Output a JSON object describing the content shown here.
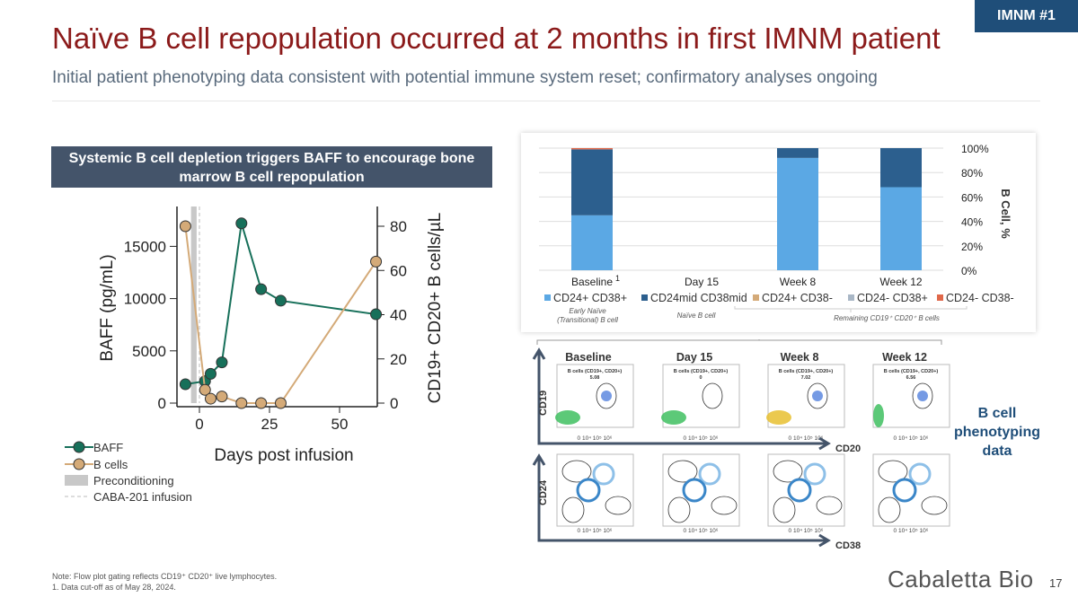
{
  "badge": "IMNM #1",
  "title": "Naïve B cell repopulation occurred at 2 months in first IMNM patient",
  "subtitle": "Initial patient phenotyping data consistent with potential immune system reset; confirmatory analyses ongoing",
  "banner": "Systemic B cell depletion triggers BAFF to encourage bone marrow B cell repopulation",
  "side_label": "B cell phenotyping data",
  "note_line1": "Note: Flow plot gating reflects CD19⁺ CD20⁺ live lymphocytes.",
  "note_line2": "1.  Data cut-off as of May 28, 2024.",
  "logo": "Cabaletta Bio",
  "page_number": "17",
  "chart_data": [
    {
      "type": "line",
      "xlabel": "Days post infusion",
      "ylabel": "BAFF (pg/mL)",
      "y2label": "CD19+ CD20+ B cells/µL",
      "xticks": [
        "0",
        "25",
        "50"
      ],
      "yticks": [
        "0",
        "5000",
        "10000",
        "15000"
      ],
      "y2ticks": [
        "0",
        "20",
        "40",
        "60",
        "80"
      ],
      "xlim": [
        -8,
        65
      ],
      "ylim": [
        0,
        17500
      ],
      "y2lim": [
        0,
        87
      ],
      "series": [
        {
          "name": "BAFF",
          "axis": "left",
          "color": "#17705a",
          "x": [
            -5,
            2,
            4,
            8,
            15,
            22,
            29,
            63
          ],
          "y": [
            1800,
            2100,
            2800,
            3900,
            17200,
            10900,
            9800,
            8500
          ]
        },
        {
          "name": "B cells",
          "axis": "right",
          "color": "#d4aa78",
          "x": [
            -5,
            2,
            4,
            8,
            15,
            22,
            29,
            63
          ],
          "y": [
            80,
            6,
            2,
            3,
            0,
            0,
            0,
            64
          ]
        }
      ],
      "legend": [
        "BAFF",
        "B cells",
        "Preconditioning",
        "CABA-201 infusion"
      ],
      "preconditioning_days": [
        -3,
        -1
      ],
      "infusion_day": 0
    },
    {
      "type": "bar",
      "stacked": true,
      "ylabel": "B Cell, %",
      "yticks": [
        "0%",
        "20%",
        "40%",
        "60%",
        "80%",
        "100%"
      ],
      "ylim": [
        0,
        100
      ],
      "categories": [
        "Baseline",
        "Day 15",
        "Week 8",
        "Week 12"
      ],
      "baseline_footnote": "1",
      "series": [
        {
          "name": "CD24+ CD38+",
          "color": "#5ba8e4",
          "values": [
            45,
            0,
            92,
            68
          ]
        },
        {
          "name": "CD24mid CD38mid",
          "color": "#2c5f8e",
          "values": [
            54,
            0,
            8,
            32
          ]
        },
        {
          "name": "CD24+ CD38-",
          "color": "#d4aa78",
          "values": [
            0,
            0,
            0,
            0
          ]
        },
        {
          "name": "CD24- CD38+",
          "color": "#a9b7c6",
          "values": [
            0,
            0,
            0,
            0
          ]
        },
        {
          "name": "CD24- CD38-",
          "color": "#e0684a",
          "values": [
            1,
            0,
            0,
            0
          ]
        }
      ],
      "group_labels": [
        "Early Naïve (Transitional) B cell",
        "Naïve B cell",
        "Remaining CD19⁺ CD20⁺ B cells"
      ]
    }
  ],
  "flow": {
    "timepoints": [
      "Baseline",
      "Day 15",
      "Week 8",
      "Week 12"
    ],
    "gate_label": "B cells (CD19+, CD20+)",
    "gate_values": [
      "5.08",
      "0",
      "7.02",
      "6.56"
    ],
    "axis_top_y": "CD19",
    "axis_top_x": "CD20",
    "axis_bottom_y": "CD24",
    "axis_bottom_x": "CD38"
  }
}
